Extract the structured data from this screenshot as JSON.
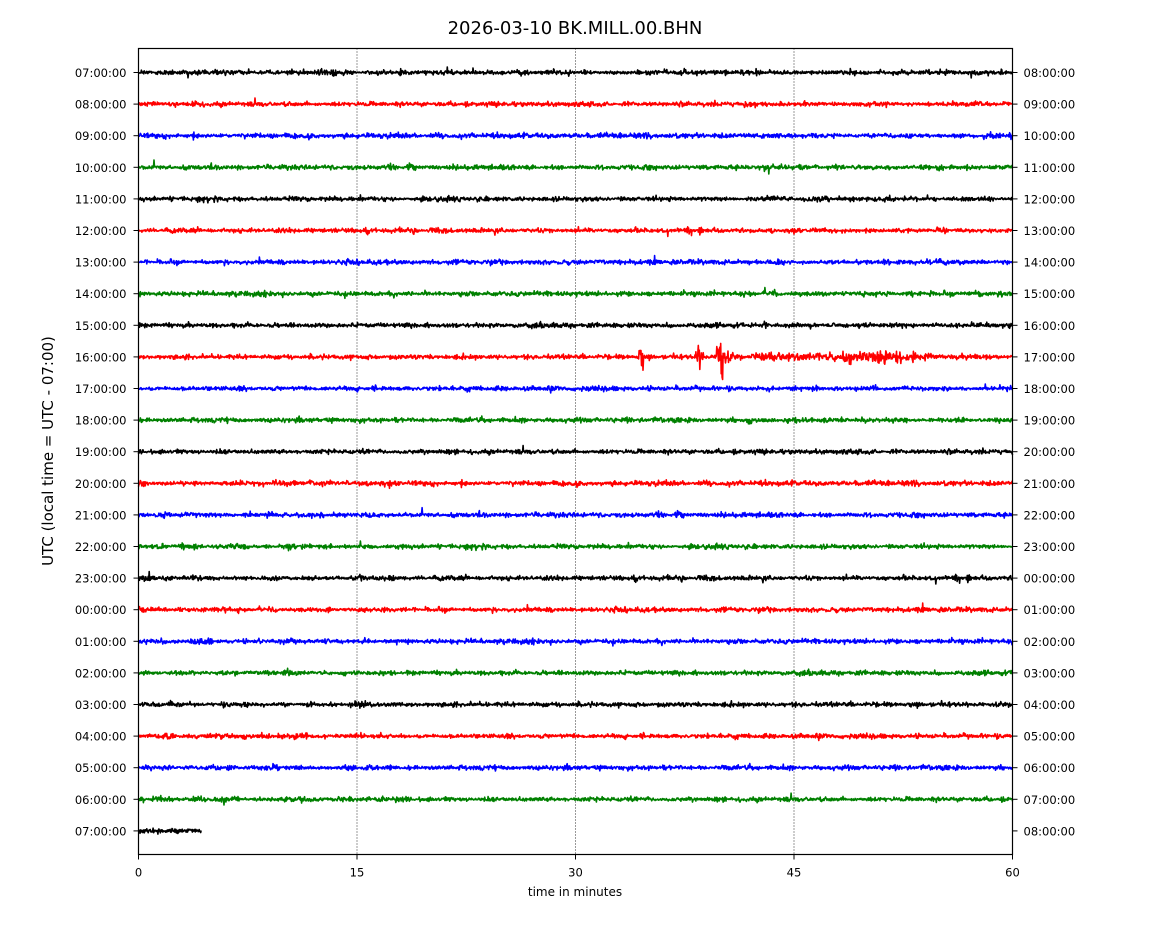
{
  "chart_data": {
    "type": "line",
    "title": "2026-03-10 BK.MILL.00.BHN",
    "xlabel": "time in minutes",
    "ylabel": "UTC (local time = UTC - 07:00)",
    "xlim": [
      0,
      60
    ],
    "x_ticks": [
      "0",
      "15",
      "30",
      "45",
      "60"
    ],
    "x_tick_values": [
      0,
      15,
      30,
      45,
      60
    ],
    "grid": "vertical dotted lines at 15, 30, 45",
    "left_tick_labels": [
      "07:00:00",
      "08:00:00",
      "09:00:00",
      "10:00:00",
      "11:00:00",
      "12:00:00",
      "13:00:00",
      "14:00:00",
      "15:00:00",
      "16:00:00",
      "17:00:00",
      "18:00:00",
      "19:00:00",
      "20:00:00",
      "21:00:00",
      "22:00:00",
      "23:00:00",
      "00:00:00",
      "01:00:00",
      "02:00:00",
      "03:00:00",
      "04:00:00",
      "05:00:00",
      "06:00:00",
      "07:00:00"
    ],
    "right_tick_labels": [
      "08:00:00",
      "09:00:00",
      "10:00:00",
      "11:00:00",
      "12:00:00",
      "13:00:00",
      "14:00:00",
      "15:00:00",
      "16:00:00",
      "17:00:00",
      "18:00:00",
      "19:00:00",
      "20:00:00",
      "21:00:00",
      "22:00:00",
      "23:00:00",
      "00:00:00",
      "01:00:00",
      "02:00:00",
      "03:00:00",
      "04:00:00",
      "05:00:00",
      "06:00:00",
      "07:00:00",
      "08:00:00"
    ],
    "trace_colors": [
      "#000000",
      "#ff0000",
      "#0000ff",
      "#008000"
    ],
    "last_trace_end_minute": 4.3,
    "events": [
      {
        "trace_label": "16:00:00",
        "start_minute": 34.3,
        "peak_minute": 40.0,
        "end_minute": 54.5
      }
    ]
  }
}
